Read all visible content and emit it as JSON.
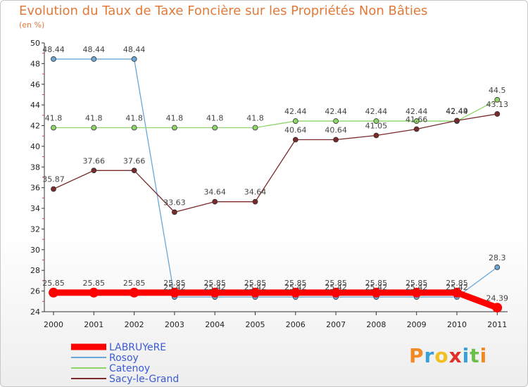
{
  "title": "Evolution du Taux de Taxe Foncière sur les Propriétés Non Bâties",
  "subtitle": "(en %)",
  "logo": [
    "P",
    "r",
    "o",
    "x",
    "i",
    "t",
    "i"
  ],
  "colors": {
    "title": "#e07a3a",
    "LABRUYeRE": "#ff0000",
    "Rosoy": "#6aa7d8",
    "Catenoy": "#8ed46a",
    "Sacy-le-Grand": "#7a2a2a"
  },
  "chart_data": {
    "type": "line",
    "title": "Evolution du Taux de Taxe Foncière sur les Propriétés Non Bâties",
    "ylabel": "(en %)",
    "x": [
      "2000",
      "2001",
      "2002",
      "2003",
      "2004",
      "2005",
      "2006",
      "2007",
      "2008",
      "2009",
      "2010",
      "2011"
    ],
    "ylim": [
      24,
      50
    ],
    "yticks": [
      24,
      26,
      28,
      30,
      32,
      34,
      36,
      38,
      40,
      42,
      44,
      46,
      48,
      50
    ],
    "series": [
      {
        "name": "LABRUYeRE",
        "color": "#ff0000",
        "width": 9,
        "values": [
          25.85,
          25.85,
          25.85,
          25.85,
          25.85,
          25.85,
          25.85,
          25.85,
          25.85,
          25.85,
          25.85,
          24.39
        ],
        "labels": [
          "25.85",
          "25.85",
          "25.85",
          "25.85",
          "25.85",
          "25.85",
          "25.85",
          "25.85",
          "25.85",
          "25.85",
          "25.85",
          "24.39"
        ]
      },
      {
        "name": "Rosoy",
        "color": "#6aa7d8",
        "width": 1.3,
        "values": [
          48.44,
          48.44,
          48.44,
          25.42,
          25.42,
          25.42,
          25.42,
          25.42,
          25.42,
          25.42,
          25.42,
          28.3
        ],
        "labels": [
          "48.44",
          "48.44",
          "48.44",
          "25.42",
          "25.42",
          "25.42",
          "25.42",
          "25.42",
          "25.42",
          "25.42",
          "25.42",
          "28.3"
        ]
      },
      {
        "name": "Catenoy",
        "color": "#8ed46a",
        "width": 1.3,
        "values": [
          41.8,
          41.8,
          41.8,
          41.8,
          41.8,
          41.8,
          42.44,
          42.44,
          42.44,
          42.44,
          42.44,
          44.5
        ],
        "labels": [
          "41.8",
          "41.8",
          "41.8",
          "41.8",
          "41.8",
          "41.8",
          "42.44",
          "42.44",
          "42.44",
          "42.44",
          "42.44",
          "44.5"
        ]
      },
      {
        "name": "Sacy-le-Grand",
        "color": "#7a2a2a",
        "width": 1.3,
        "values": [
          35.87,
          37.66,
          37.66,
          33.63,
          34.64,
          34.64,
          40.64,
          40.64,
          41.05,
          41.66,
          42.49,
          43.13
        ],
        "labels": [
          "35.87",
          "37.66",
          "37.66",
          "33.63",
          "34.64",
          "34.64",
          "40.64",
          "40.64",
          "41.05",
          "41.66",
          "42.49",
          "43.13"
        ]
      }
    ],
    "legend": [
      "LABRUYeRE",
      "Rosoy",
      "Catenoy",
      "Sacy-le-Grand"
    ]
  }
}
